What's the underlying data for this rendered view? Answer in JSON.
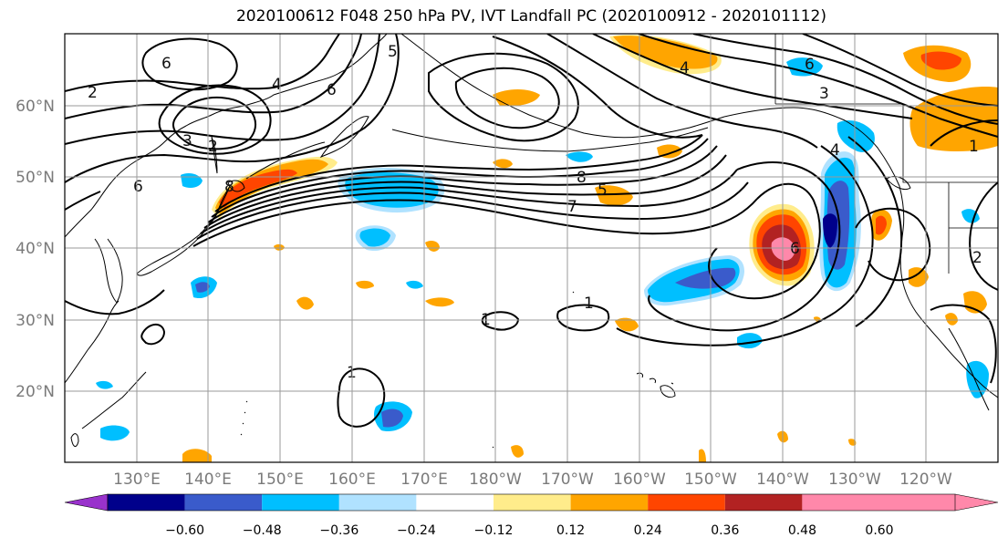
{
  "title": "2020100612 F048 250 hPa PV, IVT Landfall PC (2020100912 - 2020101112)",
  "lat_labels": [
    "60°N",
    "50°N",
    "40°N",
    "30°N",
    "20°N"
  ],
  "lon_labels": [
    "130°E",
    "140°E",
    "150°E",
    "160°E",
    "170°E",
    "180°W",
    "170°W",
    "160°W",
    "150°W",
    "140°W",
    "130°W",
    "120°W"
  ],
  "colorbar": {
    "colors": [
      "#9932CC",
      "#00008B",
      "#3A5BCB",
      "#00BFFF",
      "#B0E2FF",
      "#FFFFFF",
      "#FFEC8B",
      "#FFA500",
      "#FF4500",
      "#B22222",
      "#FF88AA"
    ],
    "tick_labels": [
      "−0.60",
      "−0.48",
      "−0.36",
      "−0.24",
      "−0.12",
      "0.12",
      "0.24",
      "0.36",
      "0.48",
      "0.60"
    ]
  },
  "contour_labels": [
    "2",
    "6",
    "5",
    "4",
    "6",
    "3",
    "2",
    "6",
    "8",
    "7",
    "5",
    "6",
    "4",
    "3",
    "1",
    "1",
    "1",
    "1",
    "2",
    "6",
    "8",
    "4"
  ]
}
